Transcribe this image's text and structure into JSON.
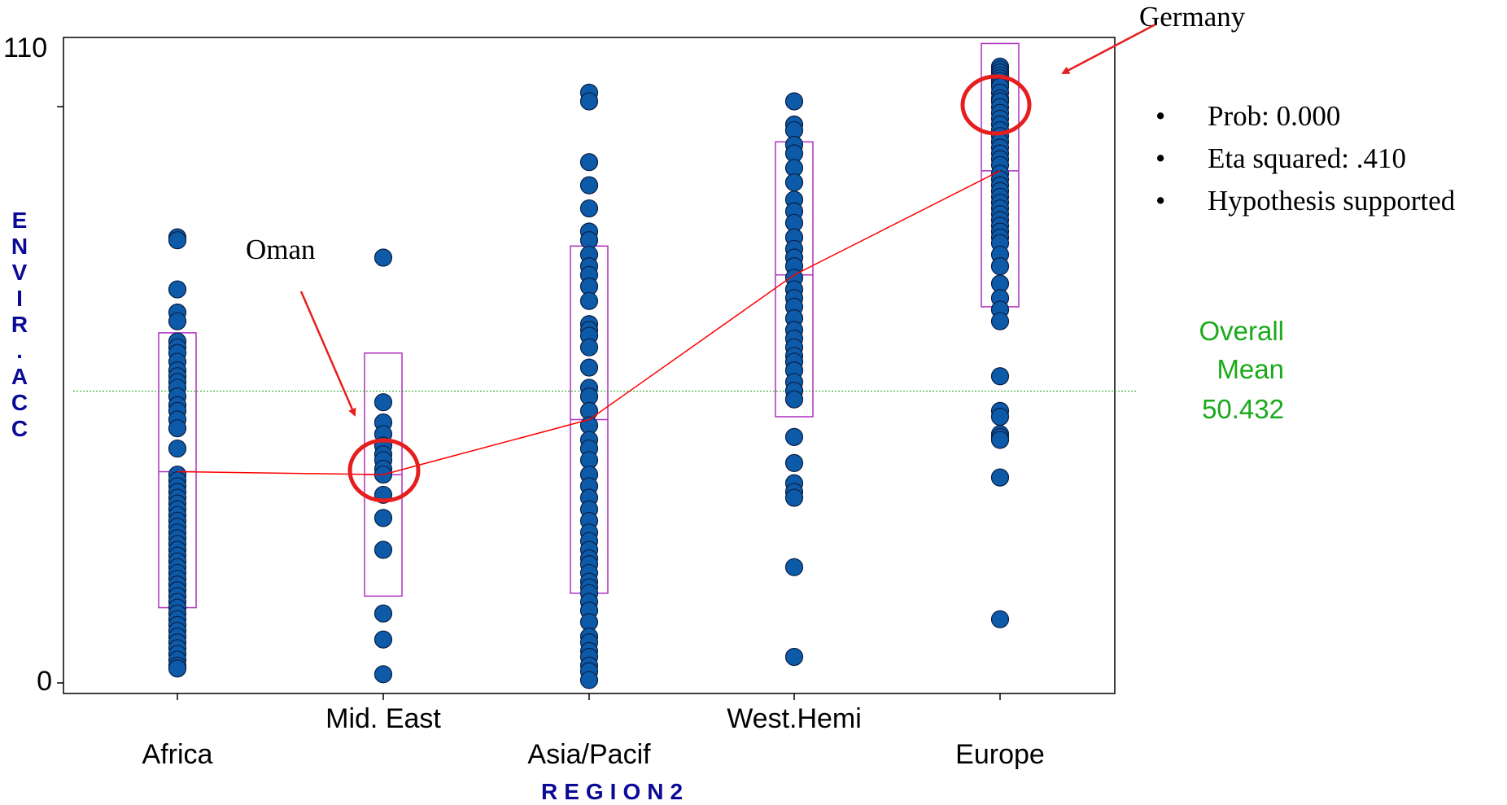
{
  "chart_data": {
    "type": "scatter",
    "xlabel": "REGION2",
    "ylabel": "ENVIR.ACC",
    "ylim": [
      0,
      110
    ],
    "yticks": [
      "0",
      "110"
    ],
    "categories": [
      "Africa",
      "Mid. East",
      "Asia/Pacif",
      "West.Hemi",
      "Europe"
    ],
    "series": [
      {
        "category": "Africa",
        "values": [
          77,
          76.5,
          68,
          64,
          62.5,
          59,
          58,
          57,
          55.5,
          54,
          53,
          52,
          51,
          49.5,
          48,
          47,
          45.5,
          44,
          40.5,
          36,
          35,
          34,
          33,
          32,
          31,
          30,
          29,
          28,
          27,
          26,
          25,
          24,
          23,
          22,
          21,
          20,
          19,
          18,
          17,
          16,
          15,
          14,
          13,
          12,
          11,
          10,
          9,
          8,
          7,
          6,
          5,
          4,
          3,
          2.5
        ]
      },
      {
        "category": "Mid. East",
        "values": [
          73.5,
          48.5,
          45,
          43,
          41,
          39.5,
          38.5,
          37,
          36,
          32.5,
          28.5,
          23,
          12,
          7.5,
          1.5
        ]
      },
      {
        "category": "Asia/Pacif",
        "values": [
          102,
          100.5,
          90,
          86,
          82,
          78,
          76.5,
          74,
          72,
          70.5,
          68.5,
          66,
          62,
          61,
          60,
          58,
          54.5,
          51,
          49.5,
          47,
          44.5,
          42,
          40.5,
          38.5,
          36,
          34,
          32,
          30,
          28,
          26,
          24.5,
          23,
          21.5,
          20.5,
          19,
          17.5,
          16.5,
          15.5,
          14,
          12.5,
          10.5,
          8,
          7,
          5.5,
          4.5,
          3,
          2,
          0.5
        ]
      },
      {
        "category": "West.Hemi",
        "values": [
          100.5,
          96.5,
          95.5,
          93,
          91.5,
          89,
          86.5,
          83.5,
          81.5,
          79.5,
          77,
          75,
          73.5,
          72,
          70,
          68,
          66.5,
          65,
          63,
          61,
          59.5,
          58,
          56.5,
          55.5,
          54,
          52,
          50.5,
          49,
          42.5,
          38,
          34.5,
          33,
          32,
          20,
          4.5
        ]
      },
      {
        "category": "Europe",
        "values": [
          106.5,
          106,
          105.5,
          105,
          104.5,
          104,
          103.5,
          103,
          102,
          101,
          100.5,
          99.5,
          98.5,
          97.5,
          96.5,
          95.5,
          94.5,
          93.5,
          92.5,
          91.5,
          90.5,
          89.5,
          88,
          87,
          86,
          85,
          84,
          83,
          82,
          81,
          80,
          79,
          78,
          77,
          76,
          74,
          72,
          69,
          66.5,
          64.5,
          62.5,
          53,
          47,
          46,
          43,
          42.5,
          42,
          35.5,
          11
        ]
      }
    ],
    "boxes": [
      {
        "category": "Africa",
        "q1": 13,
        "median": 36.5,
        "q3": 60.5
      },
      {
        "category": "Mid. East",
        "q1": 15,
        "median": 36,
        "q3": 57
      },
      {
        "category": "Asia/Pacif",
        "q1": 15.5,
        "median": 45.5,
        "q3": 75.5
      },
      {
        "category": "West.Hemi",
        "q1": 46,
        "median": 70.5,
        "q3": 93.5
      },
      {
        "category": "Europe",
        "q1": 65,
        "median": 88.5,
        "q3": 110.5
      }
    ],
    "mean_line": [
      36.5,
      36,
      45.5,
      70.5,
      88.5
    ],
    "overall_mean": 50.432
  },
  "overall_mean_label": [
    "Overall",
    "Mean",
    "50.432"
  ],
  "annotations": {
    "oman": "Oman",
    "germany": "Germany"
  },
  "stats": [
    "Prob: 0.000",
    "Eta squared: .410",
    "Hypothesis supported"
  ],
  "colors": {
    "point": "#0c5aa8",
    "box": "#b030c0",
    "mean_line": "#ff0000",
    "overall_mean": "#1aaa1a",
    "axis_title": "#0a0a96",
    "highlight": "#e61e1e"
  }
}
